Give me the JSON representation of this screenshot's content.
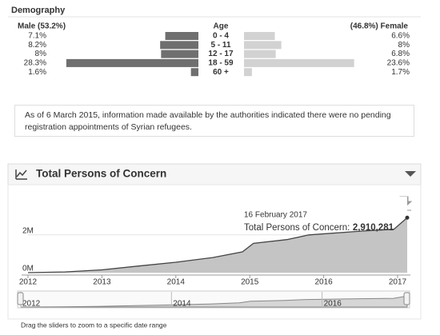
{
  "chart_data": [
    {
      "type": "pyramid",
      "title": "Demography",
      "center_label": "Age",
      "categories": [
        "0 - 4",
        "5 - 11",
        "12 - 17",
        "18 - 59",
        "60 +"
      ],
      "xlim": [
        0,
        30
      ],
      "series": [
        {
          "name": "Male (53.2%)",
          "color": "#6f6f6f",
          "values": [
            7.1,
            8.2,
            8,
            28.3,
            1.6
          ],
          "value_labels": [
            "7.1%",
            "8.2%",
            "8%",
            "28.3%",
            "1.6%"
          ]
        },
        {
          "name": "(46.8%) Female",
          "color": "#d2d2d2",
          "values": [
            6.6,
            8,
            6.8,
            23.6,
            1.7
          ],
          "value_labels": [
            "6.6%",
            "8%",
            "6.8%",
            "23.6%",
            "1.7%"
          ]
        }
      ]
    },
    {
      "type": "area",
      "title": "Total Persons of Concern",
      "color": "#c4c4c4",
      "x": [
        2012,
        2012.5,
        2013,
        2013.5,
        2014,
        2014.5,
        2014.9,
        2015.05,
        2015.5,
        2015.8,
        2016.5,
        2016.95,
        2017.13
      ],
      "values": [
        0,
        40000,
        150000,
        350000,
        550000,
        800000,
        1100000,
        1550000,
        1750000,
        2000000,
        2200000,
        2300000,
        2910281
      ],
      "xlim": [
        2012,
        2017.13
      ],
      "xticks": [
        2012,
        2013,
        2014,
        2015,
        2016,
        2017
      ],
      "ylim": [
        0,
        3600000
      ],
      "yticks": [
        {
          "value": 0,
          "label": "0M"
        },
        {
          "value": 2000000,
          "label": "2M"
        }
      ],
      "grid": true,
      "tooltip": {
        "date": "16 February 2017",
        "label": "Total Persons of Concern:",
        "value_label": "2,910,281"
      },
      "navigator": {
        "xticks": [
          2012,
          2014,
          2016
        ],
        "hint": "Drag the sliders to zoom to a specific date range"
      }
    }
  ],
  "note": "As of 6 March 2015, information made available by the authorities indicated there were no pending registration appointments of Syrian refugees."
}
